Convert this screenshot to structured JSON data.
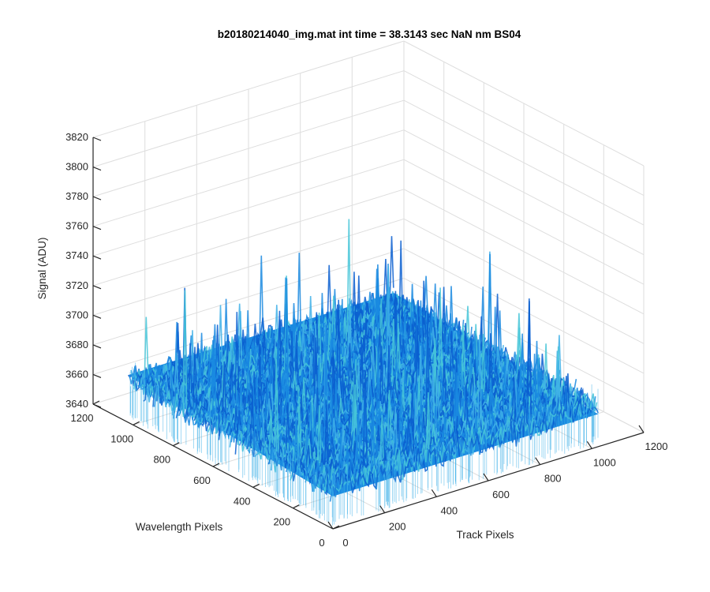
{
  "chart_data": {
    "type": "surface",
    "title": "b20180214040_img.mat int time = 38.3143 sec  NaN nm BS04",
    "xlabel": "Track Pixels",
    "ylabel": "Wavelength Pixels",
    "zlabel": "Signal (ADU)",
    "xlim": [
      0,
      1200
    ],
    "ylim": [
      0,
      1200
    ],
    "zlim": [
      3640,
      3820
    ],
    "xticks": [
      "0",
      "200",
      "400",
      "600",
      "800",
      "1000",
      "1200"
    ],
    "yticks": [
      "0",
      "200",
      "400",
      "600",
      "800",
      "1000",
      "1200"
    ],
    "zticks": [
      "3640",
      "3660",
      "3680",
      "3700",
      "3720",
      "3740",
      "3760",
      "3780",
      "3800",
      "3820"
    ],
    "surface": {
      "x_range": [
        0,
        1024
      ],
      "y_range": [
        0,
        1024
      ],
      "mean_level": 3668,
      "noise_min": 3648,
      "noise_max": 3690,
      "peak_max": 3755
    },
    "grid": true,
    "colors": {
      "surface_dark": "#0a5fd0",
      "surface_mid": "#1a8ae0",
      "surface_light": "#3fb0e8",
      "surface_cyan": "#46c6d8"
    }
  }
}
